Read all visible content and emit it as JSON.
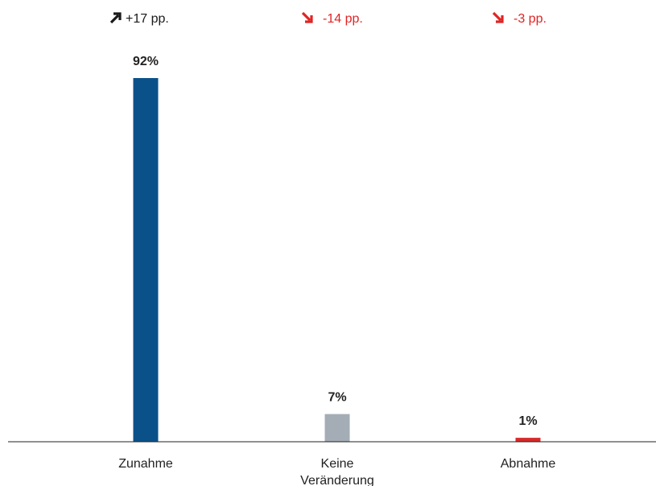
{
  "chart_data": {
    "type": "bar",
    "categories": [
      [
        "Zunahme"
      ],
      [
        "Keine",
        "Veränderung"
      ],
      [
        "Abnahme"
      ]
    ],
    "values": [
      92,
      7,
      1
    ],
    "value_labels": [
      "92%",
      "7%",
      "1%"
    ],
    "bar_colors": [
      "#0b5189",
      "#a4adb5",
      "#d62b2b"
    ],
    "changes": [
      {
        "text": "+17 pp.",
        "direction": "up",
        "color": "#1a1a1a"
      },
      {
        "text": "-14 pp.",
        "direction": "down",
        "color": "#e02424"
      },
      {
        "text": "-3 pp.",
        "direction": "down",
        "color": "#e02424"
      }
    ],
    "ylim": [
      0,
      92
    ],
    "grid": false,
    "xlabel": "",
    "ylabel": ""
  }
}
